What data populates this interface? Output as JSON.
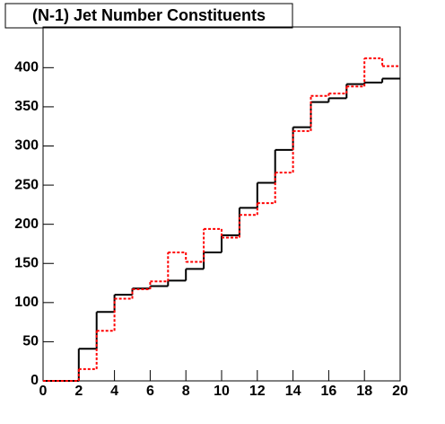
{
  "chart_data": {
    "type": "histogram",
    "title": "(N-1) Jet Number Constituents",
    "bins": [
      0,
      1,
      2,
      3,
      4,
      5,
      6,
      7,
      8,
      9,
      10,
      11,
      12,
      13,
      14,
      15,
      16,
      17,
      18,
      19,
      20
    ],
    "series": [
      {
        "color": "#000000",
        "dashed": false,
        "values": [
          0,
          0,
          41,
          88,
          110,
          118,
          121,
          128,
          143,
          164,
          186,
          221,
          253,
          295,
          324,
          356,
          361,
          379,
          381,
          386
        ]
      },
      {
        "color": "#ff0000",
        "dashed": true,
        "values": [
          0,
          0,
          15,
          64,
          105,
          117,
          127,
          164,
          152,
          194,
          183,
          212,
          227,
          266,
          319,
          364,
          367,
          376,
          412,
          402
        ]
      }
    ],
    "xlim": [
      0,
      20
    ],
    "ylim": [
      0,
      452
    ],
    "xticks": [
      0,
      2,
      4,
      6,
      8,
      10,
      12,
      14,
      16,
      18,
      20
    ],
    "yticks": [
      0,
      50,
      100,
      150,
      200,
      250,
      300,
      350,
      400
    ]
  }
}
